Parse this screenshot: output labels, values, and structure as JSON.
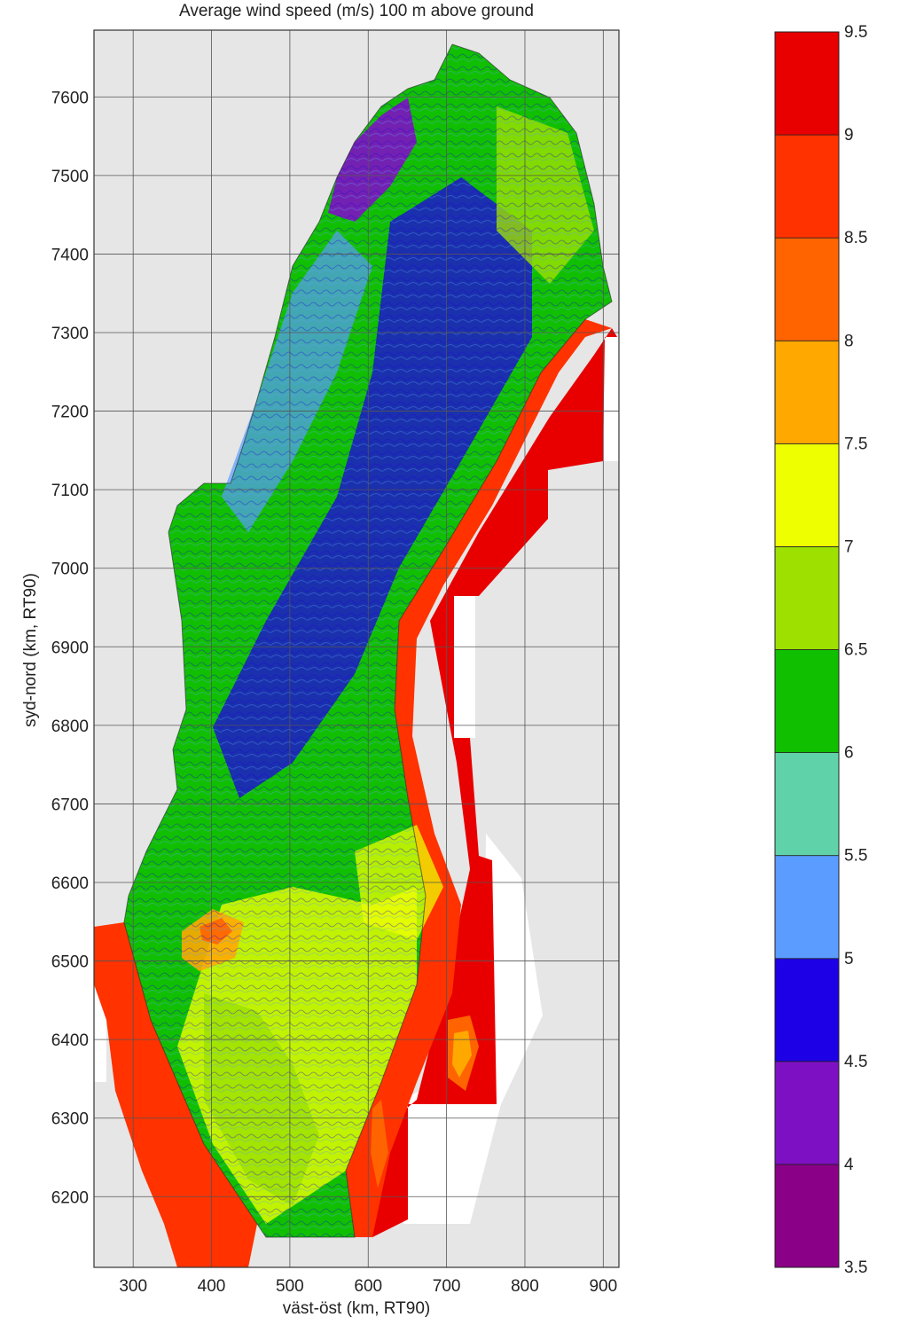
{
  "title": "Average wind speed (m/s) 100 m above ground",
  "x_axis": {
    "label": "väst-öst (km, RT90)",
    "ticks": [
      "300",
      "400",
      "500",
      "600",
      "700",
      "800",
      "900"
    ],
    "range": [
      250,
      920
    ]
  },
  "y_axis": {
    "label": "syd-nord (km, RT90)",
    "ticks": [
      "6200",
      "6300",
      "6400",
      "6500",
      "6600",
      "6700",
      "6800",
      "6900",
      "7000",
      "7100",
      "7200",
      "7300",
      "7400",
      "7500",
      "7600"
    ],
    "range": [
      6110,
      7685
    ]
  },
  "colorbar": {
    "labels": [
      "3.5",
      "4",
      "4.5",
      "5",
      "5.5",
      "6",
      "6.5",
      "7",
      "7.5",
      "8",
      "8.5",
      "9",
      "9.5"
    ],
    "colors": [
      "#8a0087",
      "#7e10c4",
      "#1e00e6",
      "#5a9cff",
      "#60d2aa",
      "#10c000",
      "#9ee000",
      "#eeff00",
      "#ffa800",
      "#ff6400",
      "#ff3200",
      "#e80000"
    ]
  },
  "colors": {
    "background": "#e6e6e6",
    "sea_high": "#e80000",
    "sea_mid": "#ff3200",
    "coast": "#ff6400",
    "land_mid": "#10c000",
    "land_low": "#1e00e6",
    "land_light": "#9ee000",
    "highlands": "#7e10c4",
    "lowlands": "#eeff00"
  }
}
